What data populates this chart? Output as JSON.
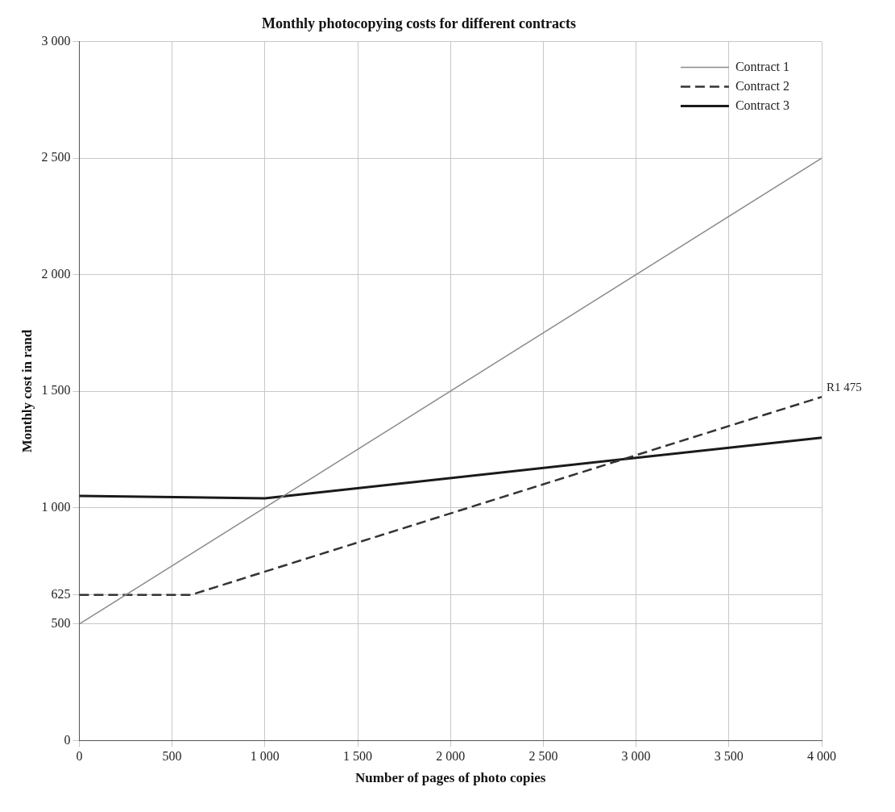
{
  "chart_data": {
    "type": "line",
    "title": "Monthly photocopying costs for different contracts",
    "xlabel": "Number of pages of photo copies",
    "ylabel": "Monthly cost in rand",
    "xlim": [
      0,
      4000
    ],
    "xticks": [
      0,
      500,
      {
        "value": 1000,
        "label": "1 000"
      },
      {
        "value": 1500,
        "label": "1 500"
      },
      {
        "value": 2000,
        "label": "2 000"
      },
      {
        "value": 2500,
        "label": "2 500"
      },
      {
        "value": 3000,
        "label": "3 000"
      },
      {
        "value": 3500,
        "label": "3 500"
      },
      {
        "value": 4000,
        "label": "4 000"
      }
    ],
    "ylim": [
      0,
      3000
    ],
    "yticks": [
      0,
      500,
      625,
      {
        "value": 1000,
        "label": "1 000"
      },
      {
        "value": 1500,
        "label": "1 500"
      },
      {
        "value": 2000,
        "label": "2 000"
      },
      {
        "value": 2500,
        "label": "2 500"
      },
      {
        "value": 3000,
        "label": "3 000"
      }
    ],
    "series": [
      {
        "name": "Contract 1",
        "color": "#8a8a8a",
        "line_style": "solid",
        "x": [
          0,
          4000
        ],
        "values": [
          500,
          2500
        ]
      },
      {
        "name": "Contract 2",
        "color": "#333333",
        "line_style": "dashed",
        "x": [
          0,
          600,
          4000
        ],
        "values": [
          625,
          625,
          1475
        ]
      },
      {
        "name": "Contract 3",
        "color": "#1a1a1a",
        "line_style": "solid",
        "x": [
          0,
          1000,
          4000
        ],
        "values": [
          1050,
          1040,
          1300
        ]
      }
    ],
    "annotations": [
      {
        "text": "R1 475",
        "x": 4000,
        "y": 1475
      }
    ],
    "grid": true,
    "legend": "top right",
    "marker": "none"
  }
}
